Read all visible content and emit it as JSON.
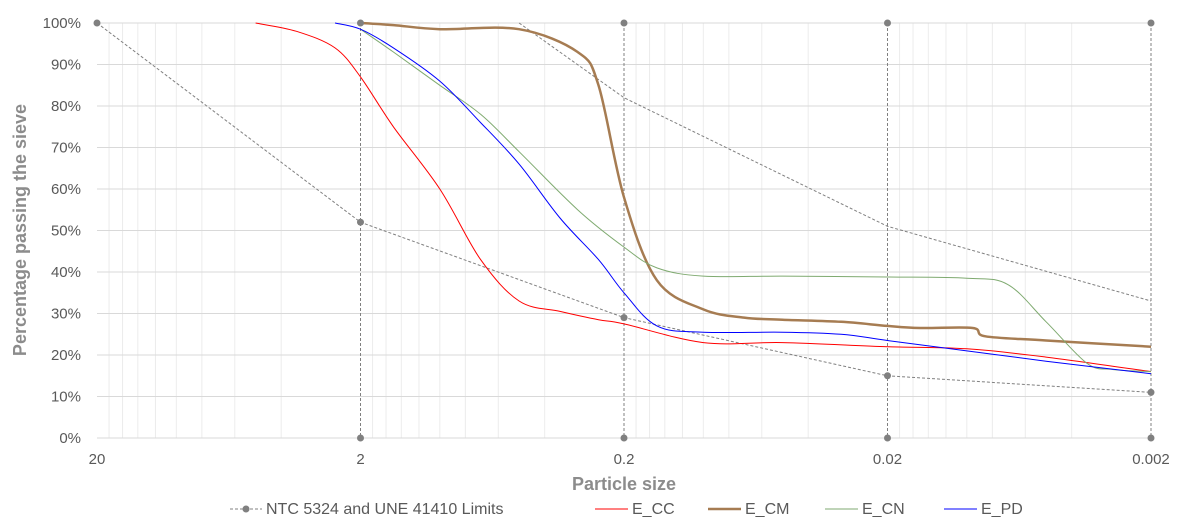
{
  "chart_data": {
    "type": "line",
    "xlabel": "Particle size",
    "ylabel": "Percentage passing the sieve",
    "x_scale": "log",
    "x_reversed": true,
    "xlim": [
      20,
      0.002
    ],
    "ylim": [
      0,
      100
    ],
    "x_ticks": [
      "20",
      "2",
      "0.2",
      "0.02",
      "0.002"
    ],
    "y_ticks": [
      "0%",
      "10%",
      "20%",
      "30%",
      "40%",
      "50%",
      "60%",
      "70%",
      "80%",
      "90%",
      "100%"
    ],
    "grid": true,
    "legend_position": "bottom",
    "limits": {
      "name": "NTC 5324 and UNE 41410 Limits",
      "color": "#808080",
      "lower": {
        "x": [
          20,
          2,
          0.2,
          0.02,
          0.002
        ],
        "y": [
          100,
          52,
          29,
          15,
          11
        ]
      },
      "upper": {
        "x": [
          0.5,
          0.2,
          0.02,
          0.002
        ],
        "y": [
          100,
          82,
          51,
          33
        ]
      },
      "verticals": [
        2,
        0.2,
        0.02,
        0.002
      ]
    },
    "series": [
      {
        "name": "E_CC",
        "color": "#ff0000",
        "width": 1,
        "x": [
          5,
          3.5,
          2.5,
          2,
          1.5,
          1,
          0.7,
          0.5,
          0.35,
          0.25,
          0.2,
          0.1,
          0.05,
          0.02,
          0.01,
          0.005,
          0.002
        ],
        "y": [
          100,
          98,
          94,
          87,
          75,
          60,
          43,
          33,
          30.5,
          28.5,
          27.5,
          23,
          23,
          22,
          21.5,
          19.5,
          16
        ]
      },
      {
        "name": "E_CM",
        "color": "#a67c52",
        "width": 2.5,
        "x": [
          2,
          1.5,
          1,
          0.5,
          0.3,
          0.25,
          0.2,
          0.15,
          0.1,
          0.07,
          0.05,
          0.03,
          0.02,
          0.015,
          0.0095,
          0.0085,
          0.005,
          0.002
        ],
        "y": [
          100,
          99.5,
          98.5,
          98.5,
          93,
          85,
          58,
          38,
          31,
          29,
          28.5,
          28,
          27,
          26.5,
          26.5,
          24.5,
          23.5,
          22
        ]
      },
      {
        "name": "E_CN",
        "color": "#7faa70",
        "width": 1,
        "x": [
          2,
          1.5,
          1,
          0.7,
          0.5,
          0.3,
          0.2,
          0.15,
          0.1,
          0.05,
          0.02,
          0.01,
          0.007,
          0.005,
          0.0035,
          0.0028,
          0.002
        ],
        "y": [
          98.5,
          93,
          85,
          78,
          69,
          55,
          46,
          41,
          39,
          39,
          38.8,
          38.5,
          37,
          28,
          18,
          16.5,
          16
        ]
      },
      {
        "name": "E_PD",
        "color": "#0000ff",
        "width": 1,
        "x": [
          2.5,
          2,
          1.5,
          1,
          0.7,
          0.5,
          0.35,
          0.25,
          0.2,
          0.15,
          0.1,
          0.05,
          0.03,
          0.02,
          0.01,
          0.005,
          0.002
        ],
        "y": [
          100,
          98.5,
          94,
          86,
          76,
          66,
          53,
          43,
          35,
          27,
          25.5,
          25.5,
          25,
          23.5,
          21,
          18.5,
          15.5
        ]
      }
    ]
  }
}
